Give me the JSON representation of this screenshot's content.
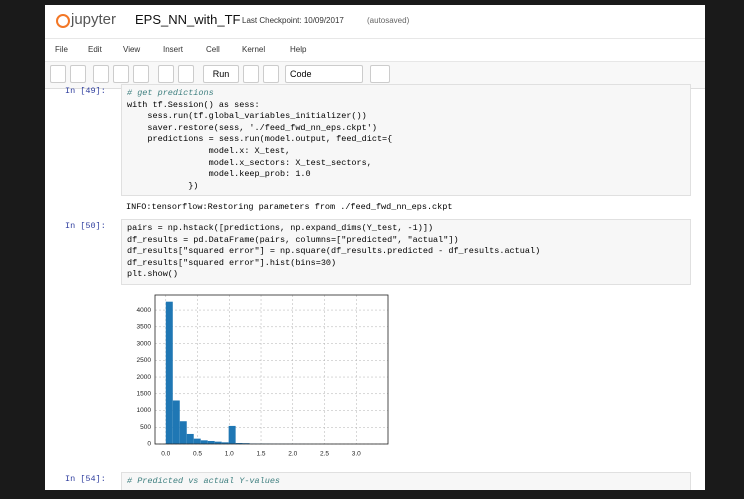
{
  "header": {
    "logo": "jupyter",
    "notebook_name": "EPS_NN_with_TF",
    "checkpoint": "Last Checkpoint: 10/09/2017",
    "autosave": "(autosaved)"
  },
  "menu": [
    "File",
    "Edit",
    "View",
    "Insert",
    "Cell",
    "Kernel",
    "Help"
  ],
  "toolbar": {
    "run": "Run",
    "cell_type": "Code"
  },
  "cells": [
    {
      "prompt": "In [49]:",
      "code": [
        "# get predictions",
        "with tf.Session() as sess:",
        "    sess.run(tf.global_variables_initializer())",
        "    saver.restore(sess, './feed_fwd_nn_eps.ckpt')",
        "    predictions = sess.run(model.output, feed_dict={",
        "                model.x: X_test,",
        "                model.x_sectors: X_test_sectors,",
        "                model.keep_prob: 1.0",
        "            })"
      ],
      "output": "INFO:tensorflow:Restoring parameters from ./feed_fwd_nn_eps.ckpt"
    },
    {
      "prompt": "In [50]:",
      "code": [
        "pairs = np.hstack([predictions, np.expand_dims(Y_test, -1)])",
        "df_results = pd.DataFrame(pairs, columns=[\"predicted\", \"actual\"])",
        "df_results[\"squared error\"] = np.square(df_results.predicted - df_results.actual)",
        "df_results[\"squared error\"].hist(bins=30)",
        "plt.show()"
      ]
    },
    {
      "prompt": "In [54]:",
      "code": [
        "# Predicted vs actual Y-values"
      ]
    }
  ],
  "chart_data": {
    "type": "histogram",
    "color": "#1f77b4",
    "grid": true,
    "bins": [
      0,
      0.11,
      0.22,
      0.33,
      0.44,
      0.55,
      0.66,
      0.77,
      0.88,
      0.99,
      1.1,
      1.21,
      1.32,
      1.43,
      1.54,
      1.65,
      1.76,
      1.87,
      1.98,
      2.09,
      2.2,
      2.31,
      2.42,
      2.53,
      2.64,
      2.75,
      2.86,
      2.97,
      3.08,
      3.19,
      3.3
    ],
    "values": [
      4250,
      1300,
      680,
      300,
      160,
      110,
      90,
      70,
      50,
      540,
      30,
      25,
      15,
      12,
      10,
      6,
      5,
      4,
      3,
      3,
      2,
      2,
      1,
      1,
      1,
      1,
      0,
      0,
      0,
      1
    ],
    "xlim": [
      -0.17,
      3.5
    ],
    "ylim": [
      0,
      4450
    ],
    "xticks": [
      {
        "value": 0,
        "label": "0.0"
      },
      0.5,
      {
        "value": 1,
        "label": "1.0"
      },
      1.5,
      {
        "value": 2,
        "label": "2.0"
      },
      2.5,
      {
        "value": 3,
        "label": "3.0"
      }
    ],
    "yticks": [
      0,
      500,
      1000,
      1500,
      2000,
      2500,
      3000,
      3500,
      4000
    ]
  }
}
